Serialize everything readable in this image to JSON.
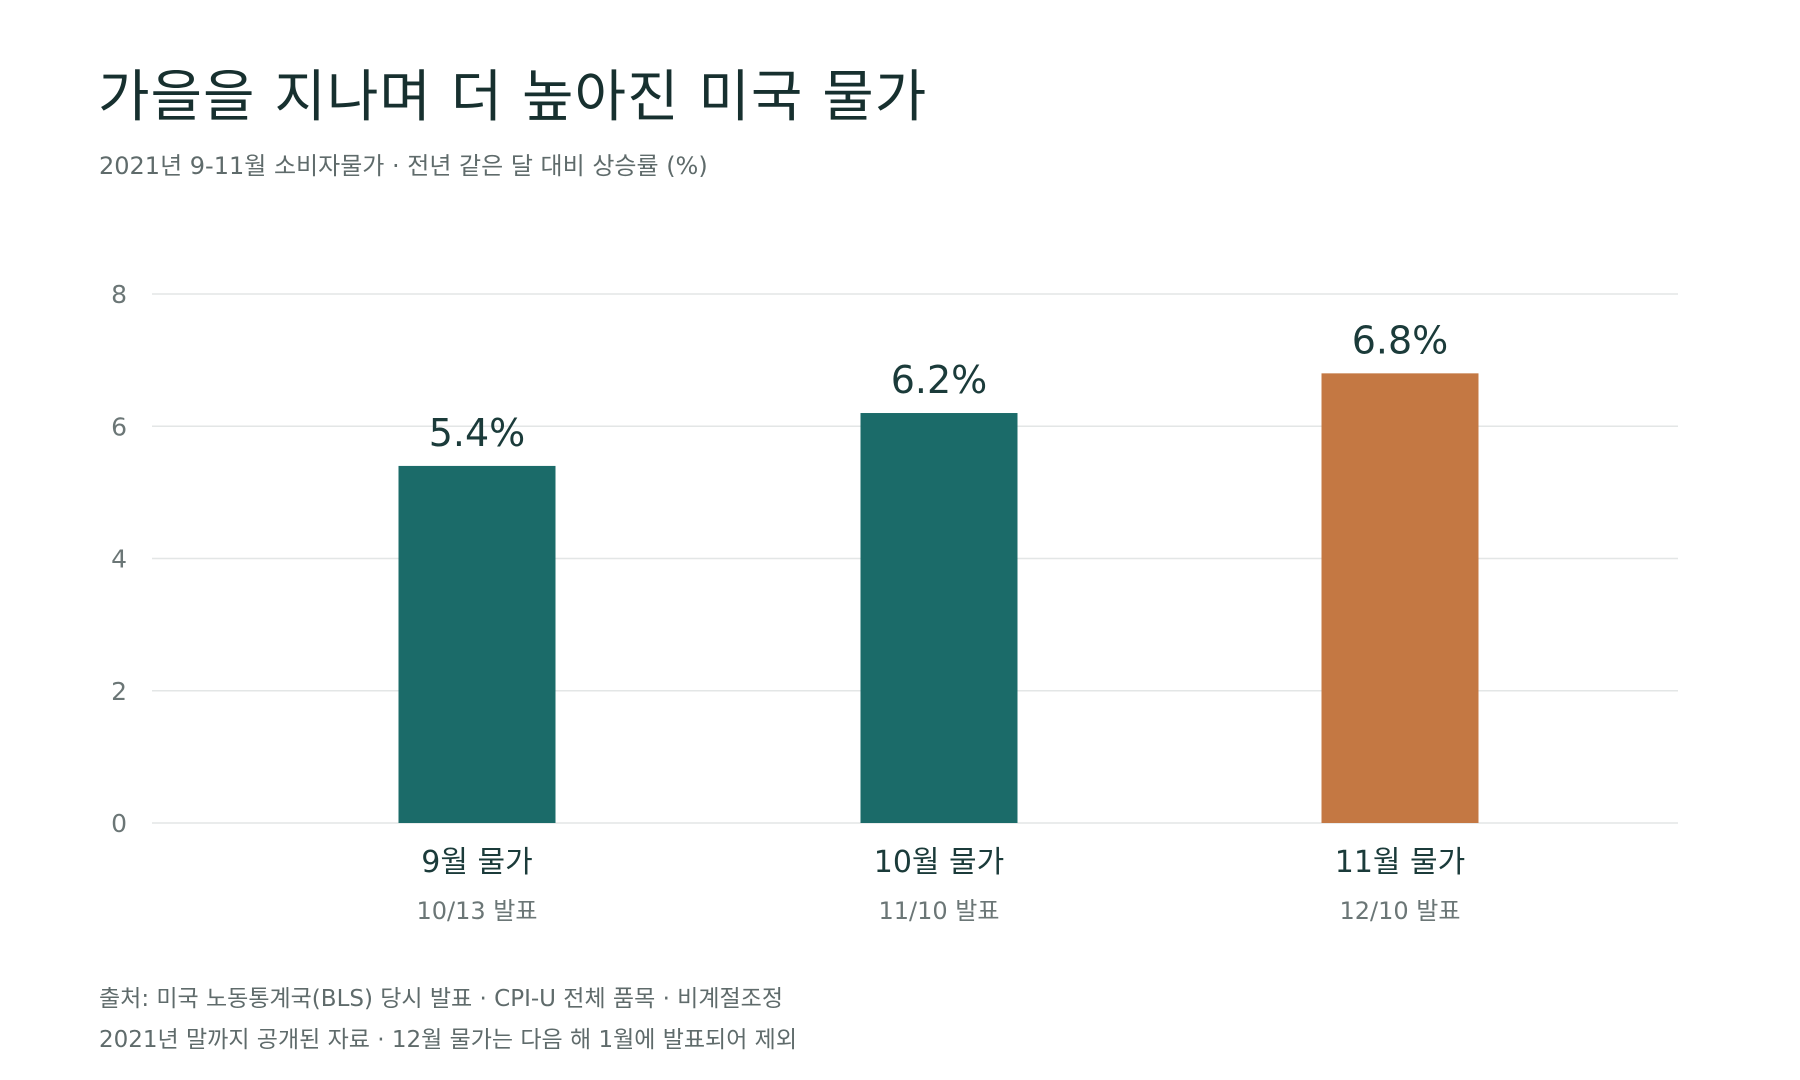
{
  "title": "가을을 지나며 더 높아진 미국 물가",
  "subtitle": "2021년 9-11월 소비자물가 · 전년 같은 달 대비 상승률 (%)",
  "footnotes": [
    "출처: 미국 노동통계국(BLS) 당시 발표 · CPI-U 전체 품목 · 비계절조정",
    "2021년 말까지 공개된 자료 · 12월 물가는 다음 해 1월에 발표되어 제외"
  ],
  "colors": {
    "bar_default": "#1b6b69",
    "bar_highlight": "#c47843",
    "grid": "#e3e6e6",
    "tick_text": "#6b7676",
    "label_text": "#1b3b3a",
    "sub_label_text": "#6b7676"
  },
  "chart_data": {
    "type": "bar",
    "categories": [
      "9월 물가",
      "10월 물가",
      "11월 물가"
    ],
    "sub_labels": [
      "10/13 발표",
      "11/10 발표",
      "12/10 발표"
    ],
    "values": [
      5.4,
      6.2,
      6.8
    ],
    "value_labels": [
      "5.4%",
      "6.2%",
      "6.8%"
    ],
    "highlight_index": 2,
    "ylim": [
      0,
      8
    ],
    "yticks": [
      0,
      2,
      4,
      6,
      8
    ],
    "grid": true,
    "title": "가을을 지나며 더 높아진 미국 물가",
    "xlabel": "",
    "ylabel": ""
  }
}
